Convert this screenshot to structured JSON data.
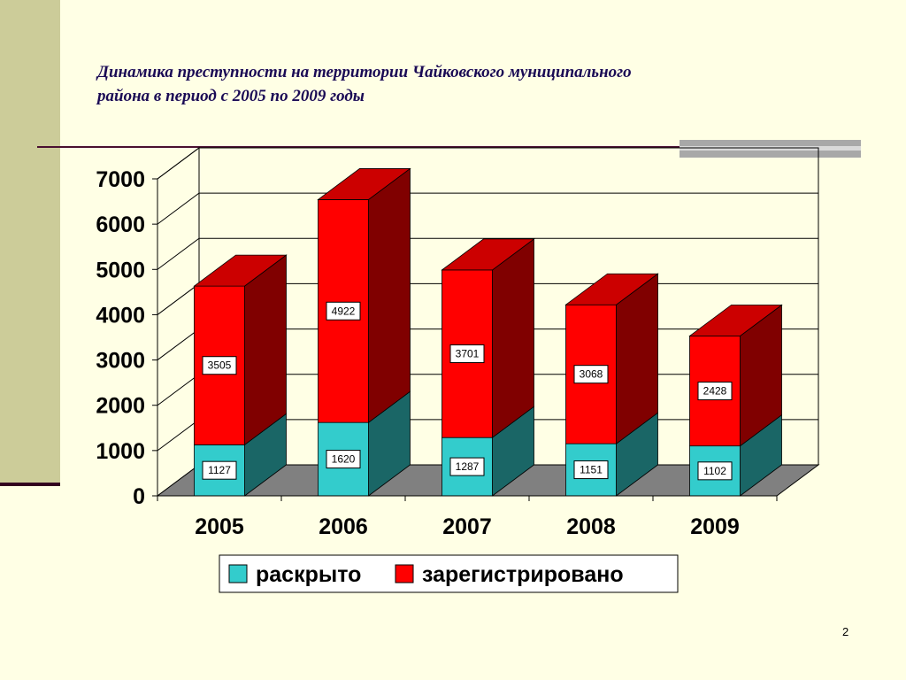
{
  "title": {
    "line1": "Динамика преступности на территории Чайковского муниципального",
    "line2": "района в период с 2005 по 2009 годы"
  },
  "page_number": "2",
  "colors": {
    "solved_front": "#33CCCC",
    "solved_side": "#1A6666",
    "registered_front": "#FF0000",
    "registered_side": "#800000",
    "registered_top": "#CC0000"
  },
  "chart_data": {
    "type": "bar",
    "stacked": true,
    "three_d": true,
    "categories": [
      "2005",
      "2006",
      "2007",
      "2008",
      "2009"
    ],
    "series": [
      {
        "name": "раскрыто",
        "values": [
          1127,
          1620,
          1287,
          1151,
          1102
        ]
      },
      {
        "name": "зарегистрировано",
        "values": [
          3505,
          4922,
          3701,
          3068,
          2428
        ]
      }
    ],
    "ylim": [
      0,
      7000
    ],
    "yticks": [
      "0",
      "1000",
      "2000",
      "3000",
      "4000",
      "5000",
      "6000",
      "7000"
    ],
    "grid": true,
    "legend": "bottom"
  }
}
